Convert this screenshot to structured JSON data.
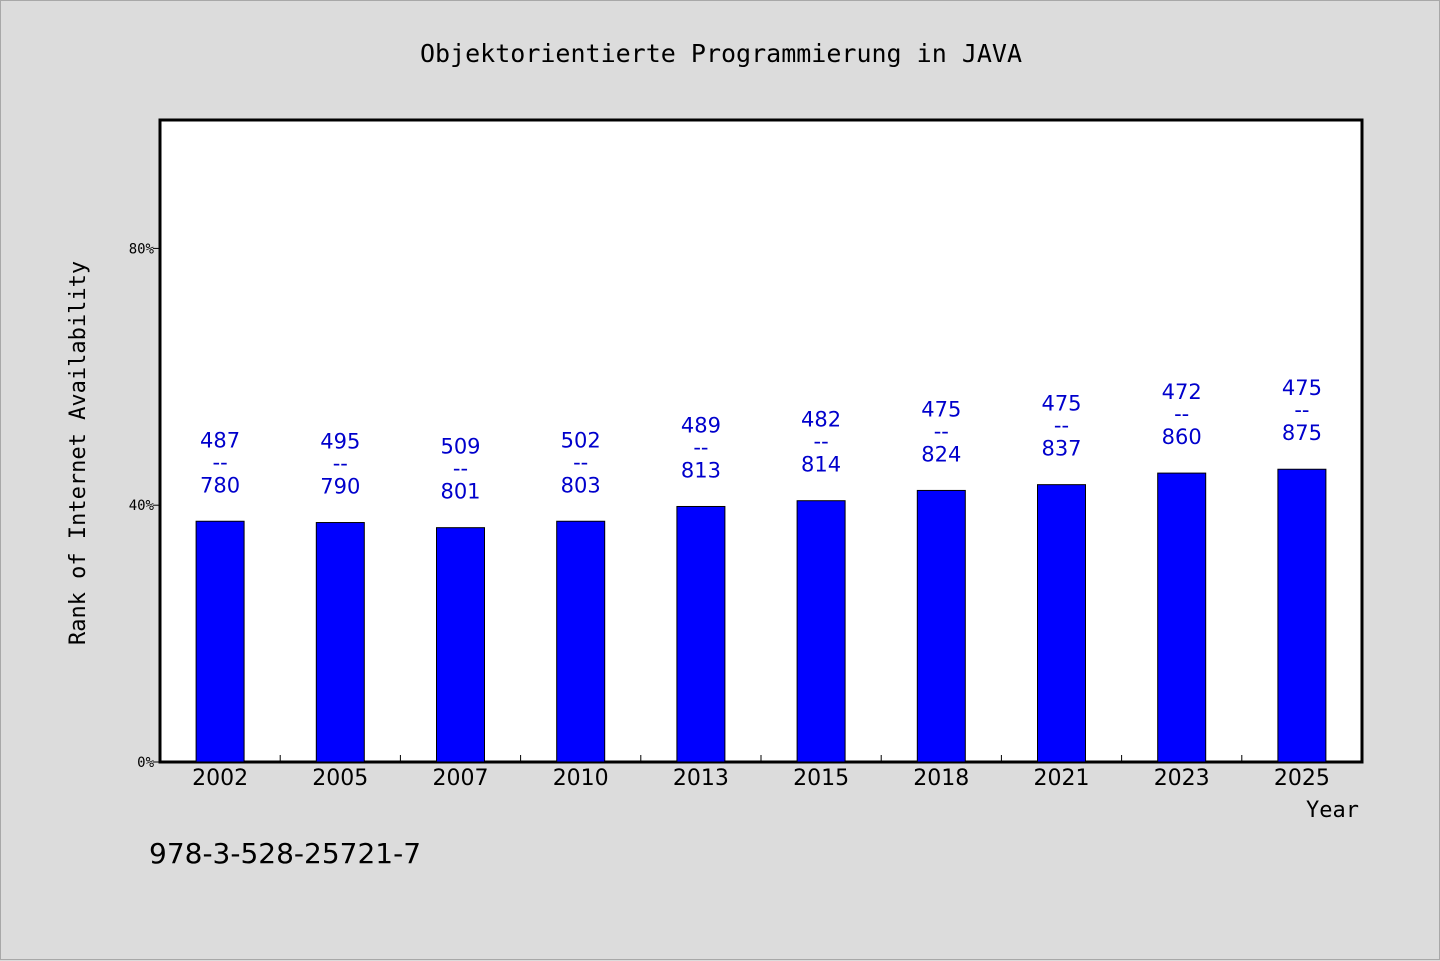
{
  "chart_data": {
    "type": "bar",
    "title": "Objektorientierte Programmierung in JAVA",
    "xlabel": "Year",
    "ylabel": "Rank of Internet Availability",
    "categories": [
      "2002",
      "2005",
      "2007",
      "2010",
      "2013",
      "2015",
      "2018",
      "2021",
      "2023",
      "2025"
    ],
    "values": [
      37.5,
      37.3,
      36.5,
      37.5,
      39.8,
      40.7,
      42.3,
      43.2,
      45.0,
      45.6
    ],
    "bar_labels": [
      {
        "top": "487",
        "sep": "--",
        "bottom": "780"
      },
      {
        "top": "495",
        "sep": "--",
        "bottom": "790"
      },
      {
        "top": "509",
        "sep": "--",
        "bottom": "801"
      },
      {
        "top": "502",
        "sep": "--",
        "bottom": "803"
      },
      {
        "top": "489",
        "sep": "--",
        "bottom": "813"
      },
      {
        "top": "482",
        "sep": "--",
        "bottom": "814"
      },
      {
        "top": "475",
        "sep": "--",
        "bottom": "824"
      },
      {
        "top": "475",
        "sep": "--",
        "bottom": "837"
      },
      {
        "top": "472",
        "sep": "--",
        "bottom": "860"
      },
      {
        "top": "475",
        "sep": "--",
        "bottom": "875"
      }
    ],
    "yticks": [
      {
        "value": 0,
        "label": "0%"
      },
      {
        "value": 40,
        "label": "40%"
      },
      {
        "value": 80,
        "label": "80%"
      }
    ],
    "ylim": [
      0,
      100
    ],
    "grid": false,
    "legend": "none",
    "colors": {
      "bar": "#0000ff",
      "label": "#0000cc",
      "background": "#dcdcdc",
      "plot_background": "#ffffff",
      "axis": "#000000"
    }
  },
  "footer_code": "978-3-528-25721-7"
}
